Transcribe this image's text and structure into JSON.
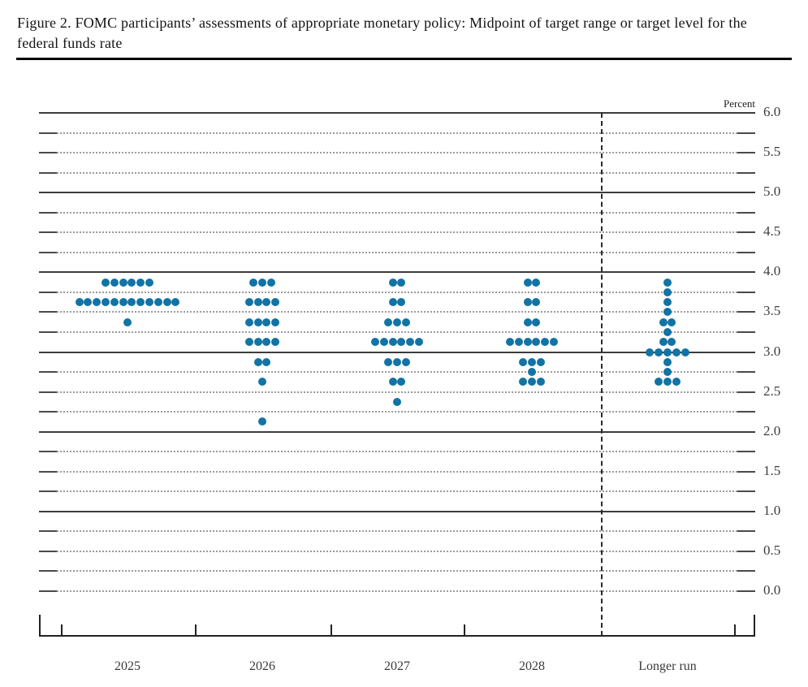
{
  "figure": {
    "title": "Figure 2. FOMC participants’ assessments of appropriate monetary policy: Midpoint of target range or target level for the federal funds rate"
  },
  "chart_data": {
    "type": "scatter",
    "subtype": "fomc-dot-plot",
    "title": "Figure 2. FOMC participants’ assessments of appropriate monetary policy: Midpoint of target range or target level for the federal funds rate",
    "ylabel": "Percent",
    "xlabel": "",
    "ylim": [
      0.0,
      6.0
    ],
    "y_label_step": 0.5,
    "grid_step": 0.25,
    "grid": "dotted lines every 0.25 percent, solid lines at whole percents 1.0-6.0, 0.0 dotted",
    "legend_position": "none",
    "separator_before_category": "Longer run",
    "categories": [
      "2025",
      "2026",
      "2027",
      "2028",
      "Longer run"
    ],
    "series": [
      {
        "name": "2025",
        "dots": [
          {
            "rate": 3.875,
            "count": 6
          },
          {
            "rate": 3.625,
            "count": 12
          },
          {
            "rate": 3.375,
            "count": 1
          }
        ]
      },
      {
        "name": "2026",
        "dots": [
          {
            "rate": 3.875,
            "count": 3
          },
          {
            "rate": 3.625,
            "count": 4
          },
          {
            "rate": 3.375,
            "count": 4
          },
          {
            "rate": 3.125,
            "count": 4
          },
          {
            "rate": 2.875,
            "count": 2
          },
          {
            "rate": 2.625,
            "count": 1
          },
          {
            "rate": 2.125,
            "count": 1
          }
        ]
      },
      {
        "name": "2027",
        "dots": [
          {
            "rate": 3.875,
            "count": 2
          },
          {
            "rate": 3.625,
            "count": 2
          },
          {
            "rate": 3.375,
            "count": 3
          },
          {
            "rate": 3.125,
            "count": 6
          },
          {
            "rate": 2.875,
            "count": 3
          },
          {
            "rate": 2.625,
            "count": 2
          },
          {
            "rate": 2.375,
            "count": 1
          }
        ]
      },
      {
        "name": "2028",
        "dots": [
          {
            "rate": 3.875,
            "count": 2
          },
          {
            "rate": 3.625,
            "count": 2
          },
          {
            "rate": 3.375,
            "count": 2
          },
          {
            "rate": 3.125,
            "count": 6
          },
          {
            "rate": 2.875,
            "count": 3
          },
          {
            "rate": 2.75,
            "count": 1
          },
          {
            "rate": 2.625,
            "count": 3
          }
        ]
      },
      {
        "name": "Longer run",
        "dots": [
          {
            "rate": 3.875,
            "count": 1
          },
          {
            "rate": 3.75,
            "count": 1
          },
          {
            "rate": 3.625,
            "count": 1
          },
          {
            "rate": 3.5,
            "count": 1
          },
          {
            "rate": 3.375,
            "count": 2
          },
          {
            "rate": 3.25,
            "count": 1
          },
          {
            "rate": 3.125,
            "count": 2
          },
          {
            "rate": 3.0,
            "count": 5
          },
          {
            "rate": 2.875,
            "count": 1
          },
          {
            "rate": 2.75,
            "count": 1
          },
          {
            "rate": 2.625,
            "count": 3
          }
        ]
      }
    ],
    "colors": {
      "dot": "#1273a5",
      "solid_grid": "#3c3c3c",
      "dotted_grid": "#9b9b9b",
      "axis": "#222222",
      "label": "#3d3d3d"
    }
  }
}
